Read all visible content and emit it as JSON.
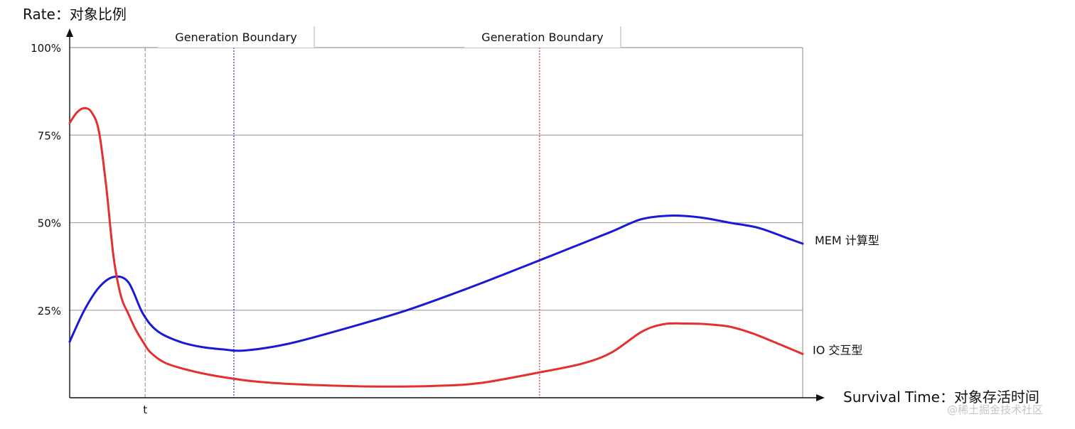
{
  "chart_data": {
    "type": "line",
    "ylabel": "Rate：对象比例",
    "xlabel": "Survival Time：对象存活时间",
    "ylim": [
      0,
      100
    ],
    "y_ticks": [
      {
        "value": 25,
        "label": "25%"
      },
      {
        "value": 50,
        "label": "50%"
      },
      {
        "value": 75,
        "label": "75%"
      },
      {
        "value": 100,
        "label": "100%"
      }
    ],
    "x_ticks": [
      {
        "value": 10.3,
        "label": "t"
      }
    ],
    "xlim": [
      0,
      100
    ],
    "grid": true,
    "series": [
      {
        "name": "MEM 计算型",
        "color": "#1a1ad6",
        "x": [
          0,
          2,
          4,
          6,
          8,
          10,
          12,
          15,
          18,
          21,
          24,
          30,
          38,
          46,
          54,
          62,
          68,
          74,
          78,
          82,
          86,
          90,
          94,
          98,
          100
        ],
        "y": [
          16,
          25,
          31.5,
          34.5,
          33,
          24,
          19,
          16,
          14.5,
          13.8,
          13.5,
          15.5,
          20,
          25,
          31,
          37.5,
          42.5,
          47.5,
          51,
          52,
          51.5,
          50,
          48.5,
          45.5,
          44
        ]
      },
      {
        "name": "IO 交互型",
        "color": "#e33030",
        "x": [
          0,
          1,
          2,
          3,
          4,
          5,
          6,
          7,
          8,
          9,
          10,
          11,
          13,
          16,
          20,
          26,
          34,
          42,
          50,
          56,
          64,
          70,
          74,
          78,
          81,
          84,
          87,
          90,
          93,
          96,
          100
        ],
        "y": [
          78.5,
          81.5,
          82.7,
          81.5,
          76,
          60,
          40,
          29,
          24,
          19.5,
          16,
          13,
          10,
          8,
          6.2,
          4.5,
          3.6,
          3.2,
          3.4,
          4.2,
          7.2,
          9.8,
          13,
          18.8,
          21,
          21.2,
          21,
          20.3,
          18.5,
          16,
          12.5
        ]
      }
    ],
    "vertical_markers": [
      {
        "x": 10.3,
        "color": "#9a9a9a",
        "label": ""
      },
      {
        "x": 22.4,
        "color": "#2a2ae0",
        "label": "Generation Boundary"
      },
      {
        "x": 64.1,
        "color": "#e33030",
        "label": "Generation Boundary"
      }
    ]
  },
  "watermark": "@稀土掘金技术社区"
}
